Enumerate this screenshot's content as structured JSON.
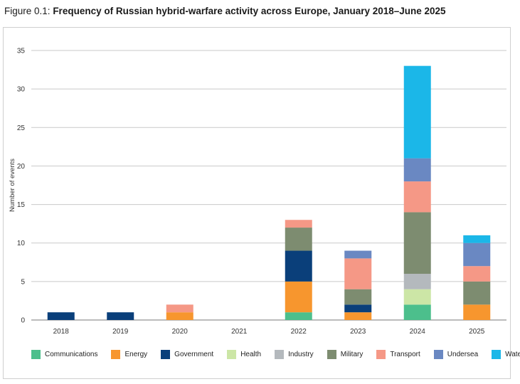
{
  "figure": {
    "label": "Figure 0.1:",
    "title": "Frequency of Russian hybrid-warfare activity across Europe, January 2018–June 2025"
  },
  "chart_data": {
    "type": "bar",
    "stacked": true,
    "title": "Frequency of Russian hybrid-warfare activity across Europe, January 2018–June 2025",
    "xlabel": "",
    "ylabel": "Number of events",
    "ylim": [
      0,
      35
    ],
    "yticks": [
      0,
      5,
      10,
      15,
      20,
      25,
      30,
      35
    ],
    "grid": true,
    "legend_position": "bottom",
    "categories": [
      "2018",
      "2019",
      "2020",
      "2021",
      "2022",
      "2023",
      "2024",
      "2025"
    ],
    "series": [
      {
        "name": "Communications",
        "color": "#4cbf8c",
        "values": [
          0,
          0,
          0,
          0,
          1,
          0,
          2,
          0
        ]
      },
      {
        "name": "Energy",
        "color": "#f7962e",
        "values": [
          0,
          0,
          1,
          0,
          4,
          1,
          0,
          2
        ]
      },
      {
        "name": "Government",
        "color": "#0a3f7a",
        "values": [
          1,
          1,
          0,
          0,
          4,
          1,
          0,
          0
        ]
      },
      {
        "name": "Health",
        "color": "#cce6a6",
        "values": [
          0,
          0,
          0,
          0,
          0,
          0,
          2,
          0
        ]
      },
      {
        "name": "Industry",
        "color": "#b4b9bd",
        "values": [
          0,
          0,
          0,
          0,
          0,
          0,
          2,
          0
        ]
      },
      {
        "name": "Military",
        "color": "#7d8c70",
        "values": [
          0,
          0,
          0,
          0,
          3,
          2,
          8,
          3
        ]
      },
      {
        "name": "Transport",
        "color": "#f59886",
        "values": [
          0,
          0,
          1,
          0,
          1,
          4,
          4,
          2
        ]
      },
      {
        "name": "Undersea",
        "color": "#6a88c2",
        "values": [
          0,
          0,
          0,
          0,
          0,
          1,
          3,
          3
        ]
      },
      {
        "name": "Water",
        "color": "#1bb7e8",
        "values": [
          0,
          0,
          0,
          0,
          0,
          0,
          12,
          1
        ]
      }
    ]
  }
}
